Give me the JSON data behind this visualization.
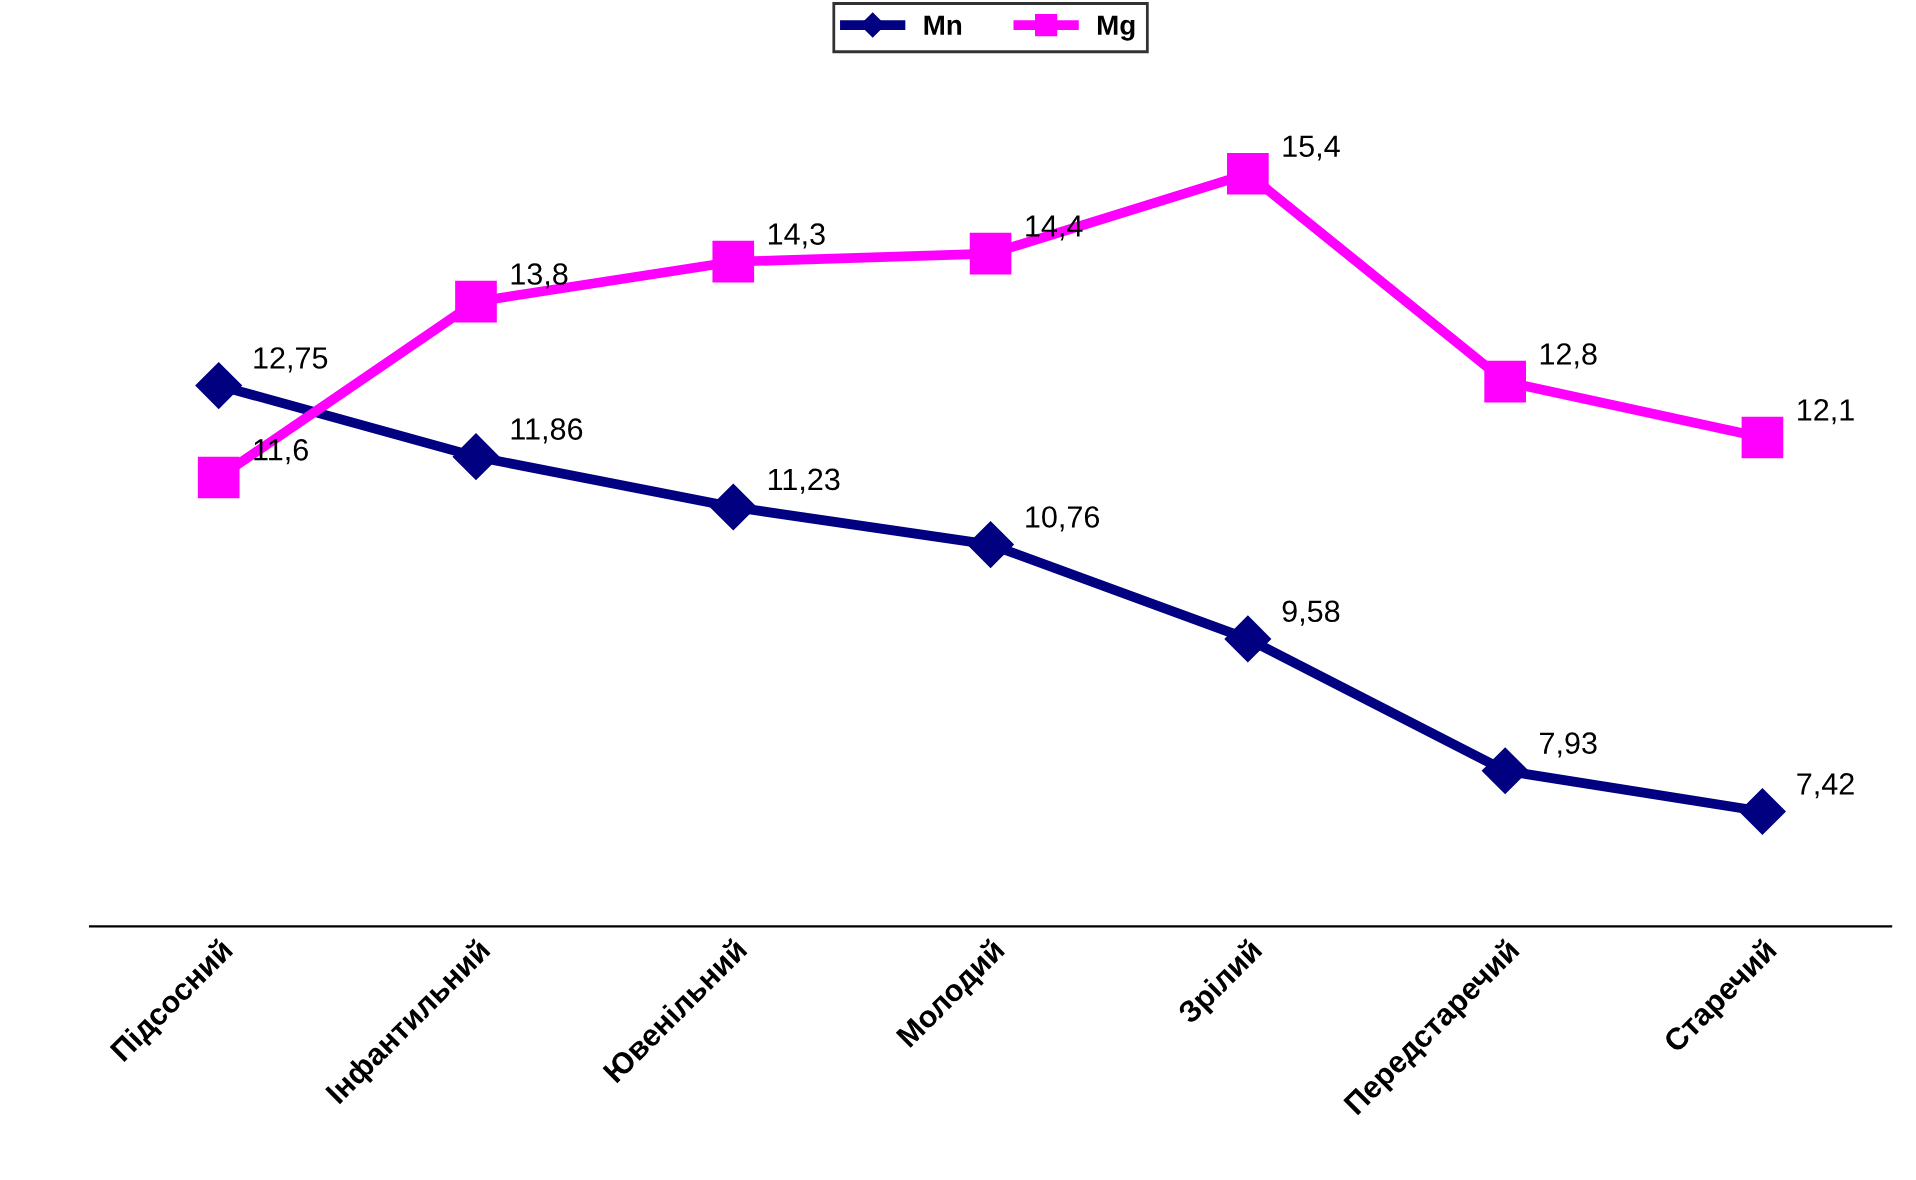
{
  "chart_data": {
    "type": "line",
    "categories": [
      "Підсосний",
      "Інфантильний",
      "Ювенільний",
      "Молодий",
      "Зрілий",
      "Передстаречий",
      "Старечий"
    ],
    "series": [
      {
        "name": "Mn",
        "color": "#000080",
        "marker": "diamond",
        "values": [
          12.75,
          11.86,
          11.23,
          10.76,
          9.58,
          7.93,
          7.42
        ],
        "value_labels": [
          "12,75",
          "11,86",
          "11,23",
          "10,76",
          "9,58",
          "7,93",
          "7,42"
        ]
      },
      {
        "name": "Mg",
        "color": "#ff00ff",
        "marker": "square",
        "values": [
          11.6,
          13.8,
          14.3,
          14.4,
          15.4,
          12.8,
          12.1
        ],
        "value_labels": [
          "11,6",
          "13,8",
          "14,3",
          "14,4",
          "15,4",
          "12,8",
          "12,1"
        ]
      }
    ],
    "tick_labels": "x",
    "grid": false,
    "legend": "top",
    "line_style": "solid"
  }
}
